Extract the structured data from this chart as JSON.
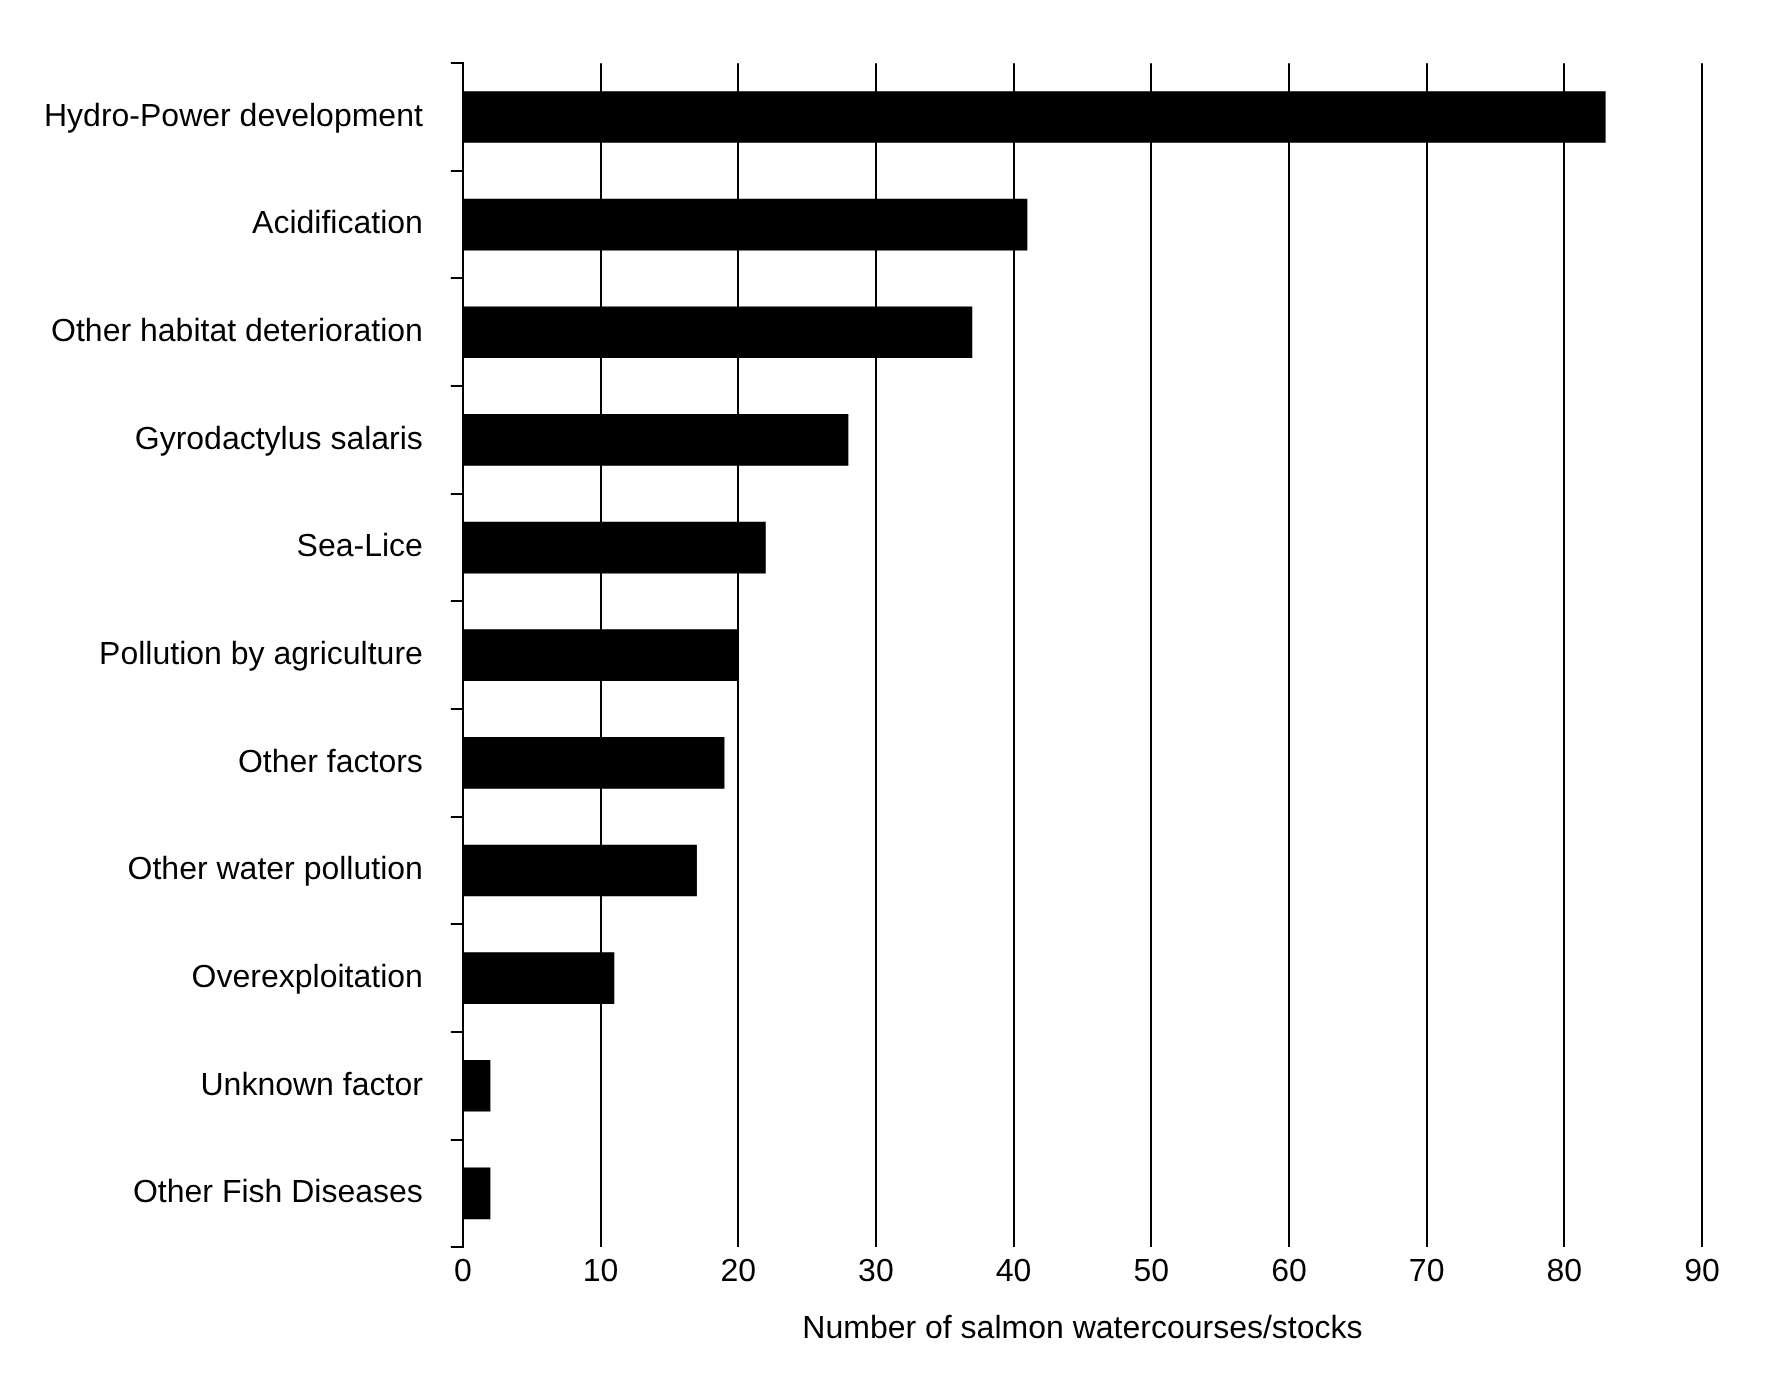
{
  "chart_data": {
    "type": "bar",
    "orientation": "horizontal",
    "xlabel": "Number of salmon watercourses/stocks",
    "categories": [
      "Hydro-Power development",
      "Acidification",
      "Other habitat deterioration",
      "Gyrodactylus salaris",
      "Sea-Lice",
      "Pollution by agriculture",
      "Other factors",
      "Other water pollution",
      "Overexploitation",
      "Unknown factor",
      "Other Fish Diseases"
    ],
    "values": [
      83,
      41,
      37,
      28,
      22,
      20,
      19,
      17,
      11,
      2,
      2
    ],
    "color": "#000000",
    "xlim": [
      0,
      90
    ],
    "xticks": [
      0,
      10,
      20,
      30,
      40,
      50,
      60,
      70,
      80,
      90
    ],
    "grid": "x"
  }
}
